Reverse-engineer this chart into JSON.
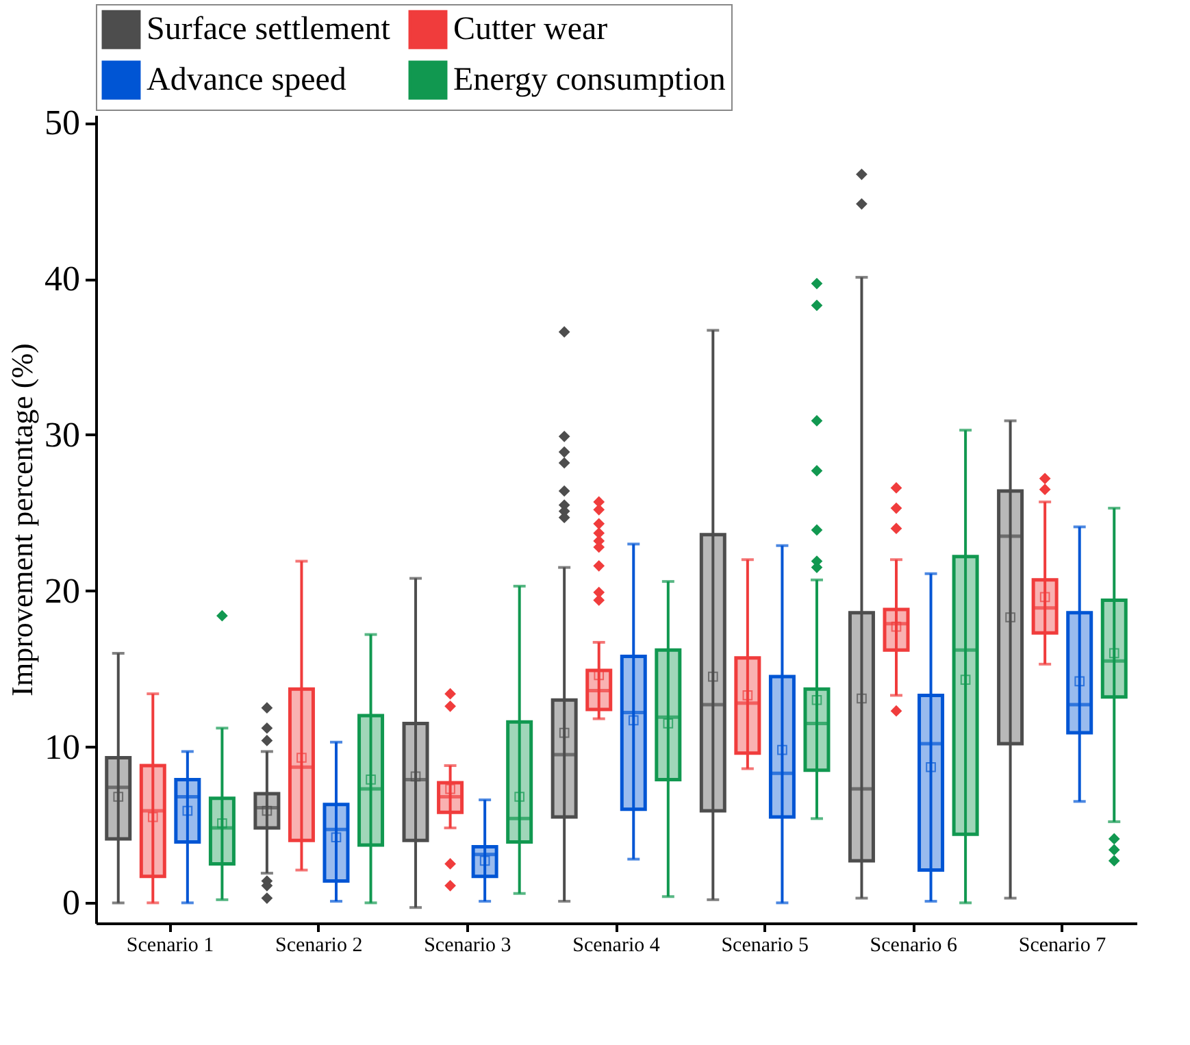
{
  "chart_data": {
    "type": "box",
    "ylabel": "Improvement percentage (%)",
    "categories": [
      "Scenario 1",
      "Scenario 2",
      "Scenario 3",
      "Scenario 4",
      "Scenario 5",
      "Scenario 6",
      "Scenario 7"
    ],
    "ylim": [
      -1.3,
      50.5
    ],
    "yticks": [
      0,
      10,
      20,
      30,
      40,
      50
    ],
    "legend": "top",
    "series": [
      {
        "name": "Surface settlement",
        "color": "#4d4d4d",
        "boxes": [
          {
            "low": 0,
            "q1": 4.1,
            "median": 7.4,
            "q3": 9.3,
            "high": 16.0,
            "mean": 6.8
          },
          {
            "low": 1.9,
            "q1": 4.8,
            "median": 6.1,
            "q3": 7.0,
            "high": 9.7,
            "mean": 5.9,
            "outliers": [
              12.5,
              11.2,
              10.4,
              1.4,
              1.1,
              0.3
            ]
          },
          {
            "low": -0.3,
            "q1": 4.0,
            "median": 7.9,
            "q3": 11.5,
            "high": 20.8,
            "mean": 8.1
          },
          {
            "low": 0.1,
            "q1": 5.5,
            "median": 9.5,
            "q3": 13.0,
            "high": 21.5,
            "mean": 10.9,
            "outliers": [
              36.6,
              29.9,
              28.9,
              28.2,
              26.4,
              25.5,
              25.1,
              24.7
            ]
          },
          {
            "low": 0.2,
            "q1": 5.9,
            "median": 12.7,
            "q3": 23.6,
            "high": 36.7,
            "mean": 14.5
          },
          {
            "low": 0.3,
            "q1": 2.7,
            "median": 7.3,
            "q3": 18.6,
            "high": 40.1,
            "mean": 13.1,
            "outliers": [
              46.7,
              44.8
            ]
          },
          {
            "low": 0.3,
            "q1": 10.2,
            "median": 23.5,
            "q3": 26.4,
            "high": 30.9,
            "mean": 18.3
          }
        ]
      },
      {
        "name": "Cutter wear",
        "color": "#f03c3c",
        "boxes": [
          {
            "low": 0,
            "q1": 1.7,
            "median": 5.9,
            "q3": 8.8,
            "high": 13.4,
            "mean": 5.5
          },
          {
            "low": 2.1,
            "q1": 4.0,
            "median": 8.7,
            "q3": 13.7,
            "high": 21.9,
            "mean": 9.3
          },
          {
            "low": 4.8,
            "q1": 5.8,
            "median": 6.8,
            "q3": 7.7,
            "high": 8.8,
            "mean": 7.3,
            "outliers": [
              13.4,
              12.6,
              2.5,
              1.1
            ]
          },
          {
            "low": 11.8,
            "q1": 12.4,
            "median": 13.6,
            "q3": 14.9,
            "high": 16.7,
            "mean": 14.6,
            "outliers": [
              25.7,
              25.2,
              24.3,
              23.7,
              23.2,
              22.8,
              21.6,
              19.9,
              19.4
            ]
          },
          {
            "low": 8.6,
            "q1": 9.6,
            "median": 12.8,
            "q3": 15.7,
            "high": 22.0,
            "mean": 13.3
          },
          {
            "low": 13.3,
            "q1": 16.2,
            "median": 17.9,
            "q3": 18.8,
            "high": 22.0,
            "mean": 17.7,
            "outliers": [
              26.6,
              25.3,
              24.0,
              12.3
            ]
          },
          {
            "low": 15.3,
            "q1": 17.3,
            "median": 18.9,
            "q3": 20.7,
            "high": 25.7,
            "mean": 19.6,
            "outliers": [
              27.2,
              26.5
            ]
          }
        ]
      },
      {
        "name": "Advance speed",
        "color": "#0055d4",
        "boxes": [
          {
            "low": 0,
            "q1": 3.9,
            "median": 6.8,
            "q3": 7.9,
            "high": 9.7,
            "mean": 5.9
          },
          {
            "low": 0.1,
            "q1": 1.4,
            "median": 4.7,
            "q3": 6.3,
            "high": 10.3,
            "mean": 4.2
          },
          {
            "low": 0.1,
            "q1": 1.7,
            "median": 3.1,
            "q3": 3.6,
            "high": 6.6,
            "mean": 2.7
          },
          {
            "low": 2.8,
            "q1": 6.0,
            "median": 12.2,
            "q3": 15.8,
            "high": 23.0,
            "mean": 11.7
          },
          {
            "low": 0,
            "q1": 5.5,
            "median": 8.3,
            "q3": 14.5,
            "high": 22.9,
            "mean": 9.8
          },
          {
            "low": 0.1,
            "q1": 2.1,
            "median": 10.2,
            "q3": 13.3,
            "high": 21.1,
            "mean": 8.7
          },
          {
            "low": 6.5,
            "q1": 10.9,
            "median": 12.7,
            "q3": 18.6,
            "high": 24.1,
            "mean": 14.2
          }
        ]
      },
      {
        "name": "Energy consumption",
        "color": "#119850",
        "boxes": [
          {
            "low": 0.2,
            "q1": 2.5,
            "median": 4.8,
            "q3": 6.7,
            "high": 11.2,
            "mean": 5.1,
            "outliers": [
              18.4
            ]
          },
          {
            "low": 0,
            "q1": 3.7,
            "median": 7.3,
            "q3": 12.0,
            "high": 17.2,
            "mean": 7.9
          },
          {
            "low": 0.6,
            "q1": 3.9,
            "median": 5.4,
            "q3": 11.6,
            "high": 20.3,
            "mean": 6.8
          },
          {
            "low": 0.4,
            "q1": 7.9,
            "median": 11.9,
            "q3": 16.2,
            "high": 20.6,
            "mean": 11.5
          },
          {
            "low": 5.4,
            "q1": 8.5,
            "median": 11.5,
            "q3": 13.7,
            "high": 20.7,
            "mean": 13.0,
            "outliers": [
              39.7,
              38.3,
              30.9,
              27.7,
              23.9,
              21.9,
              21.5
            ]
          },
          {
            "low": 0,
            "q1": 4.4,
            "median": 16.2,
            "q3": 22.2,
            "high": 30.3,
            "mean": 14.3
          },
          {
            "low": 5.2,
            "q1": 13.2,
            "median": 15.5,
            "q3": 19.4,
            "high": 25.3,
            "mean": 16.0,
            "outliers": [
              4.1,
              3.4,
              2.7
            ]
          }
        ]
      }
    ]
  }
}
